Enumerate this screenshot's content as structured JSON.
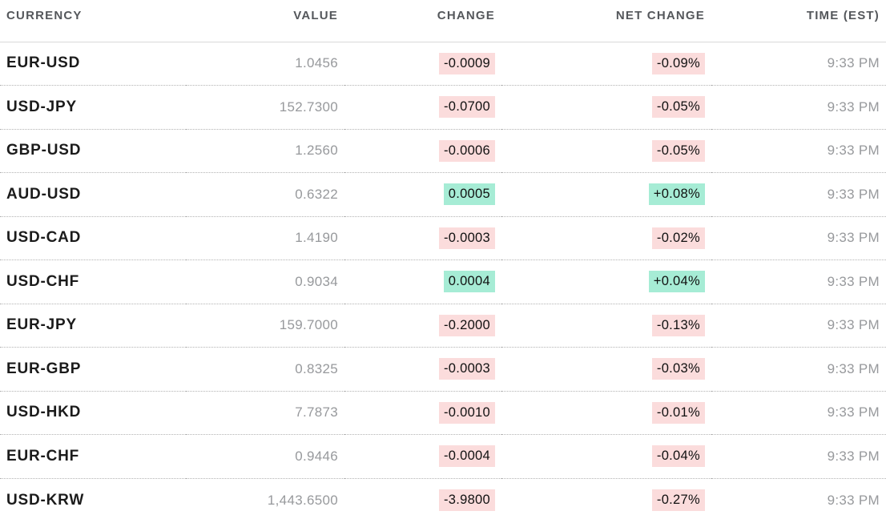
{
  "chart_data": {
    "type": "table",
    "columns": [
      "CURRENCY",
      "VALUE",
      "CHANGE",
      "NET CHANGE",
      "TIME (EST)"
    ],
    "rows": [
      {
        "currency": "EUR-USD",
        "value": "1.0456",
        "change": "-0.0009",
        "net_change": "-0.09%",
        "direction": "down",
        "time": "9:33 PM"
      },
      {
        "currency": "USD-JPY",
        "value": "152.7300",
        "change": "-0.0700",
        "net_change": "-0.05%",
        "direction": "down",
        "time": "9:33 PM"
      },
      {
        "currency": "GBP-USD",
        "value": "1.2560",
        "change": "-0.0006",
        "net_change": "-0.05%",
        "direction": "down",
        "time": "9:33 PM"
      },
      {
        "currency": "AUD-USD",
        "value": "0.6322",
        "change": "0.0005",
        "net_change": "+0.08%",
        "direction": "up",
        "time": "9:33 PM"
      },
      {
        "currency": "USD-CAD",
        "value": "1.4190",
        "change": "-0.0003",
        "net_change": "-0.02%",
        "direction": "down",
        "time": "9:33 PM"
      },
      {
        "currency": "USD-CHF",
        "value": "0.9034",
        "change": "0.0004",
        "net_change": "+0.04%",
        "direction": "up",
        "time": "9:33 PM"
      },
      {
        "currency": "EUR-JPY",
        "value": "159.7000",
        "change": "-0.2000",
        "net_change": "-0.13%",
        "direction": "down",
        "time": "9:33 PM"
      },
      {
        "currency": "EUR-GBP",
        "value": "0.8325",
        "change": "-0.0003",
        "net_change": "-0.03%",
        "direction": "down",
        "time": "9:33 PM"
      },
      {
        "currency": "USD-HKD",
        "value": "7.7873",
        "change": "-0.0010",
        "net_change": "-0.01%",
        "direction": "down",
        "time": "9:33 PM"
      },
      {
        "currency": "EUR-CHF",
        "value": "0.9446",
        "change": "-0.0004",
        "net_change": "-0.04%",
        "direction": "down",
        "time": "9:33 PM"
      },
      {
        "currency": "USD-KRW",
        "value": "1,443.6500",
        "change": "-3.9800",
        "net_change": "-0.27%",
        "direction": "down",
        "time": "9:33 PM"
      }
    ]
  },
  "colors": {
    "positive_bg": "#a6ecd5",
    "negative_bg": "#fbdcdc",
    "header_text": "#54575b",
    "currency_text": "#1b1b1b",
    "value_text": "#97999c",
    "chip_text": "#111111"
  }
}
